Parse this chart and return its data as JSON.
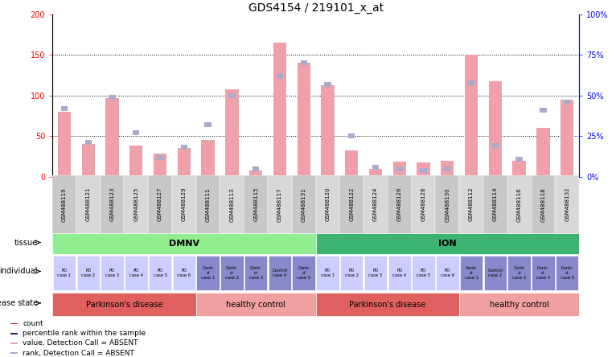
{
  "title": "GDS4154 / 219101_x_at",
  "samples": [
    "GSM488119",
    "GSM488121",
    "GSM488123",
    "GSM488125",
    "GSM488127",
    "GSM488129",
    "GSM488111",
    "GSM488113",
    "GSM488115",
    "GSM488117",
    "GSM488131",
    "GSM488120",
    "GSM488122",
    "GSM488124",
    "GSM488126",
    "GSM488128",
    "GSM488130",
    "GSM488112",
    "GSM488114",
    "GSM488116",
    "GSM488118",
    "GSM488132"
  ],
  "values": [
    80,
    40,
    97,
    38,
    28,
    35,
    45,
    108,
    8,
    165,
    140,
    113,
    32,
    10,
    19,
    18,
    20,
    150,
    118,
    20,
    60,
    95
  ],
  "ranks": [
    42,
    21,
    49,
    27,
    12,
    18,
    32,
    50,
    5,
    62,
    70,
    57,
    25,
    6,
    5,
    4,
    5,
    58,
    19,
    11,
    41,
    46
  ],
  "absent": [
    true,
    true,
    true,
    true,
    true,
    true,
    true,
    true,
    true,
    true,
    true,
    true,
    true,
    true,
    true,
    true,
    true,
    true,
    true,
    true,
    true,
    true
  ],
  "tissue_groups": [
    {
      "label": "DMNV",
      "start": 0,
      "end": 11,
      "color": "#90ee90"
    },
    {
      "label": "ION",
      "start": 11,
      "end": 22,
      "color": "#3cb371"
    }
  ],
  "individual_labels": [
    "PD\ncase 1",
    "PD\ncase 2",
    "PD\ncase 3",
    "PD\ncase 4",
    "PD\ncase 5",
    "PD\ncase 6",
    "Contr\nol\ncase 1",
    "Contr\nol\ncase 2",
    "Contr\nol\ncase 3",
    "Control\ncase 4",
    "Contr\nol\ncase 5",
    "PD\ncase 1",
    "PD\ncase 2",
    "PD\ncase 3",
    "PD\ncase 4",
    "PD\ncase 5",
    "PD\ncase 6",
    "Contr\nol\ncase 1",
    "Control\ncase 2",
    "Contr\nol\ncase 3",
    "Contr\nol\ncase 4",
    "Contr\nol\ncase 5"
  ],
  "individual_colors": [
    "#ccccff",
    "#ccccff",
    "#ccccff",
    "#ccccff",
    "#ccccff",
    "#ccccff",
    "#8888cc",
    "#8888cc",
    "#8888cc",
    "#8888cc",
    "#8888cc",
    "#ccccff",
    "#ccccff",
    "#ccccff",
    "#ccccff",
    "#ccccff",
    "#ccccff",
    "#8888cc",
    "#8888cc",
    "#8888cc",
    "#8888cc",
    "#8888cc"
  ],
  "disease_groups": [
    {
      "label": "Parkinson's disease",
      "start": 0,
      "end": 6,
      "color": "#e06060"
    },
    {
      "label": "healthy control",
      "start": 6,
      "end": 11,
      "color": "#f0a0a0"
    },
    {
      "label": "Parkinson's disease",
      "start": 11,
      "end": 17,
      "color": "#e06060"
    },
    {
      "label": "healthy control",
      "start": 17,
      "end": 22,
      "color": "#f0a0a0"
    }
  ],
  "ylim_left": [
    0,
    200
  ],
  "ylim_right": [
    0,
    100
  ],
  "yticks_left": [
    0,
    50,
    100,
    150,
    200
  ],
  "yticks_right": [
    0,
    25,
    50,
    75,
    100
  ],
  "bar_color_absent": "#f0a0a8",
  "rank_color_absent": "#aaaacc",
  "legend_items": [
    {
      "color": "#cc2222",
      "label": "count"
    },
    {
      "color": "#222288",
      "label": "percentile rank within the sample"
    },
    {
      "color": "#f0a0a8",
      "label": "value, Detection Call = ABSENT"
    },
    {
      "color": "#aaaacc",
      "label": "rank, Detection Call = ABSENT"
    }
  ]
}
